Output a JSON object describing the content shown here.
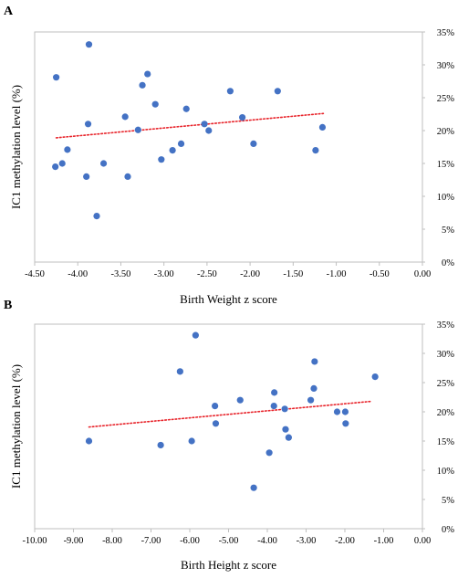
{
  "chart_data": [
    {
      "type": "scatter",
      "panel_label": "A",
      "xlabel": "Birth Weight z score",
      "ylabel": "IC1 methylation level (%)",
      "xlim": [
        -4.5,
        0.0
      ],
      "ylim": [
        0,
        0.35
      ],
      "x_ticks": [
        "-4.50",
        "-4.00",
        "-3.50",
        "-3.00",
        "-2.50",
        "-2.00",
        "-1.50",
        "-1.00",
        "-0.50",
        "0.00"
      ],
      "y_ticks": [
        "0%",
        "5%",
        "10%",
        "15%",
        "20%",
        "25%",
        "30%",
        "35%"
      ],
      "grid": false,
      "point_color": "#4472C4",
      "trendline": {
        "style": "dotted",
        "color": "#E8232A",
        "x": [
          -4.25,
          -1.15
        ],
        "y": [
          0.189,
          0.226
        ]
      },
      "points": [
        {
          "x": -4.25,
          "y": 0.281
        },
        {
          "x": -4.26,
          "y": 0.145
        },
        {
          "x": -4.18,
          "y": 0.15
        },
        {
          "x": -4.12,
          "y": 0.171
        },
        {
          "x": -3.87,
          "y": 0.331
        },
        {
          "x": -3.88,
          "y": 0.21
        },
        {
          "x": -3.9,
          "y": 0.13
        },
        {
          "x": -3.78,
          "y": 0.07
        },
        {
          "x": -3.7,
          "y": 0.15
        },
        {
          "x": -3.45,
          "y": 0.221
        },
        {
          "x": -3.42,
          "y": 0.13
        },
        {
          "x": -3.3,
          "y": 0.201
        },
        {
          "x": -3.25,
          "y": 0.269
        },
        {
          "x": -3.19,
          "y": 0.286
        },
        {
          "x": -3.1,
          "y": 0.24
        },
        {
          "x": -3.03,
          "y": 0.156
        },
        {
          "x": -2.9,
          "y": 0.17
        },
        {
          "x": -2.8,
          "y": 0.18
        },
        {
          "x": -2.74,
          "y": 0.233
        },
        {
          "x": -2.53,
          "y": 0.21
        },
        {
          "x": -2.48,
          "y": 0.2
        },
        {
          "x": -2.23,
          "y": 0.26
        },
        {
          "x": -2.09,
          "y": 0.22
        },
        {
          "x": -1.96,
          "y": 0.18
        },
        {
          "x": -1.68,
          "y": 0.26
        },
        {
          "x": -1.24,
          "y": 0.17
        },
        {
          "x": -1.16,
          "y": 0.205
        }
      ]
    },
    {
      "type": "scatter",
      "panel_label": "B",
      "xlabel": "Birth Height z score",
      "ylabel": "IC1 methylation level (%)",
      "xlim": [
        -10.0,
        0.0
      ],
      "ylim": [
        0,
        0.35
      ],
      "x_ticks": [
        "-10.00",
        "-9.00",
        "-8.00",
        "-7.00",
        "-6.00",
        "-5.00",
        "-4.00",
        "-3.00",
        "-2.00",
        "-1.00",
        "0.00"
      ],
      "y_ticks": [
        "0%",
        "5%",
        "10%",
        "15%",
        "20%",
        "25%",
        "30%",
        "35%"
      ],
      "grid": false,
      "point_color": "#4472C4",
      "trendline": {
        "style": "dotted",
        "color": "#E8232A",
        "x": [
          -8.6,
          -1.3
        ],
        "y": [
          0.174,
          0.218
        ]
      },
      "points": [
        {
          "x": -8.6,
          "y": 0.15
        },
        {
          "x": -6.75,
          "y": 0.143
        },
        {
          "x": -6.25,
          "y": 0.269
        },
        {
          "x": -5.95,
          "y": 0.15
        },
        {
          "x": -5.85,
          "y": 0.331
        },
        {
          "x": -5.35,
          "y": 0.21
        },
        {
          "x": -5.33,
          "y": 0.18
        },
        {
          "x": -4.7,
          "y": 0.22
        },
        {
          "x": -4.35,
          "y": 0.07
        },
        {
          "x": -3.95,
          "y": 0.13
        },
        {
          "x": -3.82,
          "y": 0.233
        },
        {
          "x": -3.83,
          "y": 0.21
        },
        {
          "x": -3.55,
          "y": 0.205
        },
        {
          "x": -3.53,
          "y": 0.17
        },
        {
          "x": -3.45,
          "y": 0.156
        },
        {
          "x": -2.88,
          "y": 0.22
        },
        {
          "x": -2.8,
          "y": 0.24
        },
        {
          "x": -2.78,
          "y": 0.286
        },
        {
          "x": -2.2,
          "y": 0.2
        },
        {
          "x": -1.99,
          "y": 0.2
        },
        {
          "x": -1.98,
          "y": 0.18
        },
        {
          "x": -1.22,
          "y": 0.26
        }
      ]
    }
  ]
}
